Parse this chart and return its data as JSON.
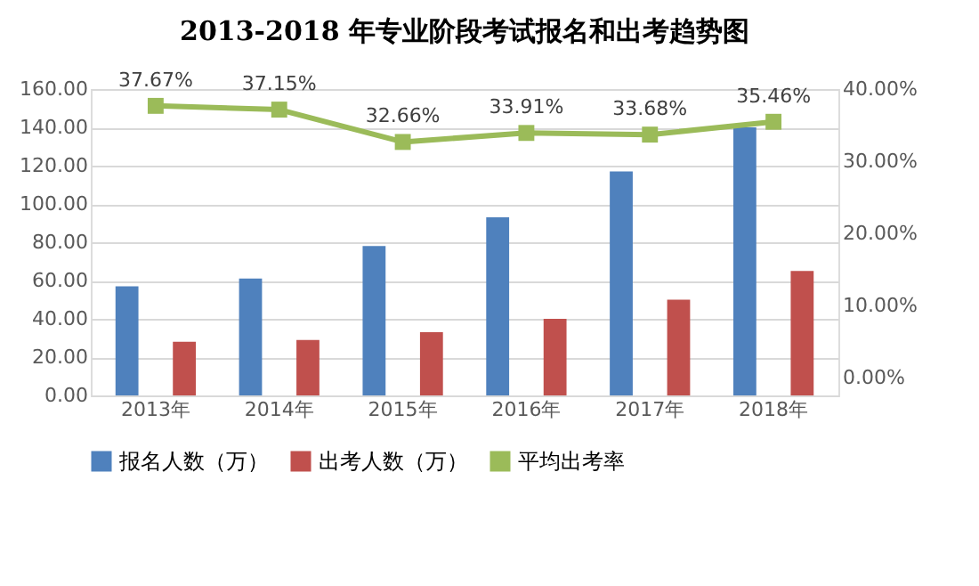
{
  "chart_data": {
    "type": "bar",
    "title": "2013-2018 年专业阶段考试报名和出考趋势图",
    "categories": [
      "2013年",
      "2014年",
      "2015年",
      "2016年",
      "2017年",
      "2018年"
    ],
    "series": [
      {
        "name": "报名人数（万）",
        "color": "#4f81bd",
        "values": [
          57,
          61,
          78,
          93,
          117,
          140
        ]
      },
      {
        "name": "出考人数（万）",
        "color": "#c0504d",
        "values": [
          28,
          29,
          33,
          40,
          50,
          65
        ]
      },
      {
        "name": "平均出考率",
        "type": "line",
        "axis": "y2",
        "color": "#9bbb59",
        "marker": "square",
        "values": [
          37.67,
          37.15,
          32.66,
          33.91,
          33.68,
          35.46
        ],
        "value_labels": [
          "37.67%",
          "37.15%",
          "32.66%",
          "33.91%",
          "33.68%",
          "35.46%"
        ]
      }
    ],
    "ylim": [
      0,
      160
    ],
    "yticks": [
      {
        "value": 0,
        "label": "0.00"
      },
      {
        "value": 20,
        "label": "20.00"
      },
      {
        "value": 40,
        "label": "40.00"
      },
      {
        "value": 60,
        "label": "60.00"
      },
      {
        "value": 80,
        "label": "80.00"
      },
      {
        "value": 100,
        "label": "100.00"
      },
      {
        "value": 120,
        "label": "120.00"
      },
      {
        "value": 140,
        "label": "140.00"
      },
      {
        "value": 160,
        "label": "160.00"
      }
    ],
    "y2lim": [
      -2.5,
      40
    ],
    "y2ticks": [
      {
        "value": 0,
        "label": "0.00%"
      },
      {
        "value": 10,
        "label": "10.00%"
      },
      {
        "value": 20,
        "label": "20.00%"
      },
      {
        "value": 30,
        "label": "30.00%"
      },
      {
        "value": 40,
        "label": "40.00%"
      }
    ],
    "grid": "y",
    "legend": "bottom"
  }
}
